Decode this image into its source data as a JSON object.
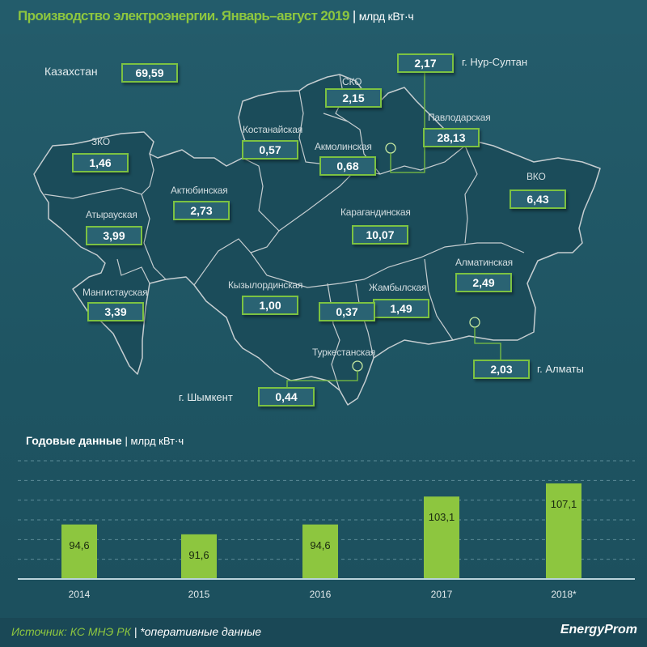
{
  "header": {
    "title": "Производство электроэнергии. Январь–август 2019",
    "unit": "млрд кВт·ч"
  },
  "total": {
    "label": "Казахстан",
    "value": "69,59"
  },
  "regions": [
    {
      "name": "ЗКО",
      "value": "1,46"
    },
    {
      "name": "Атырауская",
      "value": "3,99"
    },
    {
      "name": "Мангистауская",
      "value": "3,39"
    },
    {
      "name": "Актюбинская",
      "value": "2,73"
    },
    {
      "name": "Костанайская",
      "value": "0,57"
    },
    {
      "name": "СКО",
      "value": "2,15"
    },
    {
      "name": "Акмолинская",
      "value": "0,68"
    },
    {
      "name": "Павлодарская",
      "value": "28,13"
    },
    {
      "name": "ВКО",
      "value": "6,43"
    },
    {
      "name": "Карагандинская",
      "value": "10,07"
    },
    {
      "name": "Кызылординская",
      "value": "1,00"
    },
    {
      "name": "Жамбылская",
      "value": "1,49"
    },
    {
      "name": "Алматинская",
      "value": "2,49"
    },
    {
      "name": "Туркестанская",
      "value": "0,37"
    }
  ],
  "cities": [
    {
      "name": "г. Нур-Султан",
      "value": "2,17"
    },
    {
      "name": "г. Алматы",
      "value": "2,03"
    },
    {
      "name": "г. Шымкент",
      "value": "0,44"
    }
  ],
  "colors": {
    "background": "#1e5462",
    "accent": "#8dc63f",
    "bar": "#8dc63f",
    "box_border": "#7cc242"
  },
  "chart_data": {
    "type": "bar",
    "title": "Годовые данные",
    "unit": "млрд кВт·ч",
    "categories": [
      "2014",
      "2015",
      "2016",
      "2017",
      "2018*"
    ],
    "values": [
      94.6,
      91.6,
      94.6,
      103.1,
      107.1
    ],
    "value_labels": [
      "94,6",
      "91,6",
      "94,6",
      "103,1",
      "107,1"
    ],
    "ylim": [
      78,
      114
    ],
    "grid": true,
    "grid_style": "dashed"
  },
  "footer": {
    "source": "Источник: КС МНЭ РК",
    "note": "*оперативные данные",
    "logo": "EnergyProm"
  }
}
